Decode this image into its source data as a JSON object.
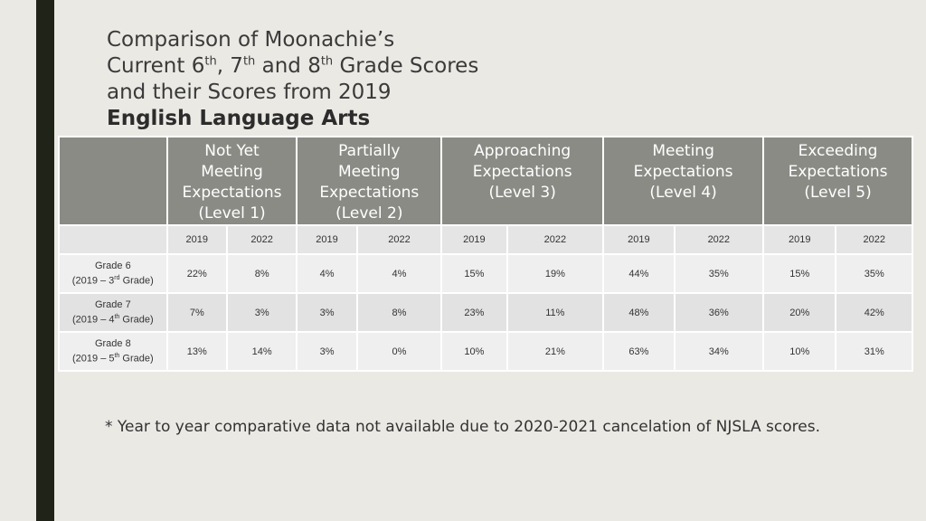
{
  "title": {
    "line1": "Comparison of Moonachie’s",
    "line2": {
      "a": "Current 6",
      "sup1": "th",
      "b": ", 7",
      "sup2": "th",
      "c": " and 8",
      "sup3": "th",
      "d": " Grade Scores"
    },
    "line3": "and their Scores from 2019",
    "subtitle": "English Language Arts"
  },
  "table": {
    "headers": [
      {
        "lines": [
          "Not Yet",
          "Meeting",
          "Expectations",
          "(Level 1)"
        ]
      },
      {
        "lines": [
          "Partially",
          "Meeting",
          "Expectations",
          "(Level 2)"
        ]
      },
      {
        "lines": [
          "Approaching",
          "Expectations",
          "(Level 3)"
        ]
      },
      {
        "lines": [
          "Meeting",
          "Expectations",
          "(Level 4)"
        ]
      },
      {
        "lines": [
          "Exceeding",
          "Expectations",
          "(Level 5)"
        ]
      }
    ],
    "years": [
      "2019",
      "2022",
      "2019",
      "2022",
      "2019",
      "2022",
      "2019",
      "2022",
      "2019",
      "2022"
    ],
    "rows": [
      {
        "grade": "Grade 6",
        "sub_a": "(2019 – 3",
        "sub_sup": "rd",
        "sub_b": " Grade)",
        "values": [
          "22%",
          "8%",
          "4%",
          "4%",
          "15%",
          "19%",
          "44%",
          "35%",
          "15%",
          "35%"
        ]
      },
      {
        "grade": "Grade 7",
        "sub_a": "(2019 – 4",
        "sub_sup": "th",
        "sub_b": " Grade)",
        "values": [
          "7%",
          "3%",
          "3%",
          "8%",
          "23%",
          "11%",
          "48%",
          "36%",
          "20%",
          "42%"
        ]
      },
      {
        "grade": "Grade 8",
        "sub_a": "(2019 – 5",
        "sub_sup": "th",
        "sub_b": " Grade)",
        "values": [
          "13%",
          "14%",
          "3%",
          "0%",
          "10%",
          "21%",
          "63%",
          "34%",
          "10%",
          "31%"
        ]
      }
    ]
  },
  "footnote": "* Year to year comparative data not available due to 2020-2021 cancelation of NJSLA scores."
}
